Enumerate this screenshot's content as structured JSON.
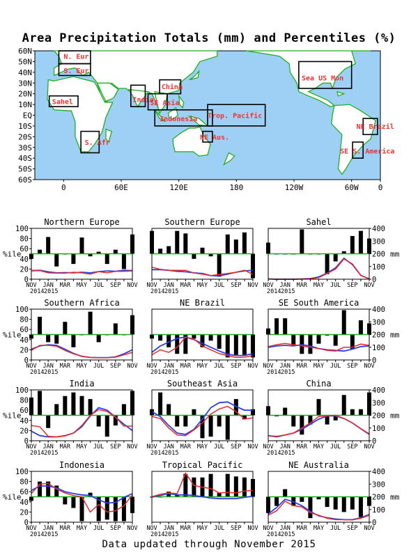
{
  "map": {
    "title": "Area Precipitation Totals (mm) and Percentiles (%)",
    "lat_labels": [
      "60N",
      "50N",
      "40N",
      "30N",
      "20N",
      "10N",
      "EQ",
      "10S",
      "20S",
      "30S",
      "40S",
      "50S",
      "60S"
    ],
    "lon_labels": [
      "0",
      "60E",
      "120E",
      "180",
      "120W",
      "60W",
      "0"
    ],
    "regions": [
      "N. Eur",
      "S. Eur",
      "Sahel",
      "S. Afr",
      "India",
      "SE Asia",
      "China",
      "Indonesia",
      "Trop. Pacific",
      "NE Aus.",
      "Sea US Mon",
      "NE Brazil",
      "SE S. America"
    ]
  },
  "footer": "Data updated through November 2015",
  "axis": {
    "ylabel_left": "%ile",
    "ylabel_right": "mm",
    "left_ticks": [
      "0",
      "20",
      "40",
      "60",
      "80",
      "100"
    ],
    "right_ticks": [
      "0",
      "100",
      "200",
      "300",
      "400"
    ],
    "month_labels": [
      "NOV",
      "JAN",
      "MAR",
      "MAY",
      "JUL",
      "SEP",
      "NOV"
    ],
    "year_labels": [
      "2014",
      "2015"
    ]
  },
  "chart_data": [
    {
      "type": "bar",
      "title": "Northern Europe",
      "x": [
        "N",
        "D",
        "J",
        "F",
        "M",
        "A",
        "M",
        "J",
        "J",
        "A",
        "S",
        "O",
        "N"
      ],
      "series": [
        {
          "name": "percentile",
          "values": [
            40,
            58,
            83,
            25,
            50,
            30,
            82,
            45,
            54,
            30,
            58,
            20,
            88
          ]
        },
        {
          "name": "observed_mm",
          "values": [
            65,
            68,
            50,
            48,
            47,
            55,
            50,
            40,
            60,
            50,
            62,
            62,
            65
          ]
        },
        {
          "name": "normal_mm",
          "values": [
            68,
            70,
            58,
            50,
            52,
            50,
            55,
            50,
            60,
            65,
            62,
            70,
            68
          ]
        }
      ],
      "ylim": [
        0,
        100
      ],
      "y2lim": [
        0,
        400
      ]
    },
    {
      "type": "bar",
      "title": "Southern Europe",
      "x": [
        "N",
        "D",
        "J",
        "F",
        "M",
        "A",
        "M",
        "J",
        "J",
        "A",
        "S",
        "O",
        "N"
      ],
      "series": [
        {
          "name": "percentile",
          "values": [
            95,
            60,
            65,
            95,
            90,
            40,
            62,
            45,
            5,
            88,
            78,
            92,
            2
          ]
        },
        {
          "name": "observed_mm",
          "values": [
            95,
            78,
            70,
            70,
            70,
            48,
            40,
            28,
            38,
            45,
            55,
            70,
            38
          ]
        },
        {
          "name": "normal_mm",
          "values": [
            75,
            75,
            70,
            62,
            58,
            50,
            45,
            28,
            25,
            40,
            55,
            65,
            70
          ]
        }
      ],
      "ylim": [
        0,
        100
      ],
      "y2lim": [
        0,
        400
      ]
    },
    {
      "type": "bar",
      "title": "Sahel",
      "x": [
        "N",
        "D",
        "J",
        "F",
        "M",
        "A",
        "M",
        "J",
        "J",
        "A",
        "S",
        "O",
        "N"
      ],
      "series": [
        {
          "name": "percentile",
          "values": [
            72,
            50,
            50,
            50,
            98,
            50,
            50,
            10,
            35,
            55,
            85,
            95,
            80
          ]
        },
        {
          "name": "observed_mm",
          "values": [
            2,
            0,
            0,
            0,
            1,
            3,
            12,
            45,
            80,
            160,
            120,
            30,
            2
          ]
        },
        {
          "name": "normal_mm",
          "values": [
            2,
            0,
            0,
            0,
            2,
            5,
            18,
            48,
            90,
            165,
            115,
            30,
            2
          ]
        }
      ],
      "ylim": [
        0,
        100
      ],
      "y2lim": [
        0,
        400
      ]
    },
    {
      "type": "bar",
      "title": "Southern Africa",
      "x": [
        "N",
        "D",
        "J",
        "F",
        "M",
        "A",
        "M",
        "J",
        "J",
        "A",
        "S",
        "O",
        "N"
      ],
      "series": [
        {
          "name": "percentile",
          "values": [
            42,
            85,
            35,
            32,
            75,
            25,
            50,
            95,
            35,
            50,
            72,
            50,
            88
          ]
        },
        {
          "name": "observed_mm",
          "values": [
            75,
            115,
            115,
            108,
            75,
            48,
            30,
            20,
            18,
            18,
            22,
            40,
            60
          ]
        },
        {
          "name": "normal_mm",
          "values": [
            85,
            110,
            120,
            115,
            85,
            52,
            28,
            20,
            18,
            18,
            24,
            48,
            80
          ]
        }
      ],
      "ylim": [
        0,
        100
      ],
      "y2lim": [
        0,
        400
      ]
    },
    {
      "type": "bar",
      "title": "NE Brazil",
      "x": [
        "N",
        "D",
        "J",
        "F",
        "M",
        "A",
        "M",
        "J",
        "J",
        "A",
        "S",
        "O",
        "N"
      ],
      "series": [
        {
          "name": "percentile",
          "values": [
            42,
            38,
            25,
            12,
            12,
            42,
            25,
            38,
            22,
            5,
            10,
            10,
            5
          ]
        },
        {
          "name": "observed_mm",
          "values": [
            40,
            80,
            60,
            100,
            180,
            165,
            110,
            80,
            50,
            35,
            20,
            22,
            35
          ]
        },
        {
          "name": "normal_mm",
          "values": [
            60,
            110,
            140,
            170,
            180,
            160,
            130,
            100,
            70,
            45,
            35,
            35,
            50
          ]
        }
      ],
      "ylim": [
        0,
        100
      ],
      "y2lim": [
        0,
        400
      ]
    },
    {
      "type": "bar",
      "title": "SE South America",
      "x": [
        "N",
        "D",
        "J",
        "F",
        "M",
        "A",
        "M",
        "J",
        "J",
        "A",
        "S",
        "O",
        "N"
      ],
      "series": [
        {
          "name": "percentile",
          "values": [
            62,
            82,
            82,
            28,
            12,
            12,
            32,
            48,
            28,
            98,
            22,
            78,
            72
          ]
        },
        {
          "name": "observed_mm",
          "values": [
            105,
            120,
            130,
            120,
            110,
            100,
            90,
            75,
            70,
            100,
            100,
            125,
            115
          ]
        },
        {
          "name": "normal_mm",
          "values": [
            100,
            110,
            115,
            110,
            120,
            110,
            90,
            80,
            75,
            70,
            85,
            105,
            110
          ]
        }
      ],
      "ylim": [
        0,
        100
      ],
      "y2lim": [
        0,
        400
      ]
    },
    {
      "type": "bar",
      "title": "India",
      "x": [
        "N",
        "D",
        "J",
        "F",
        "M",
        "A",
        "M",
        "J",
        "J",
        "A",
        "S",
        "O",
        "N"
      ],
      "series": [
        {
          "name": "percentile",
          "values": [
            85,
            98,
            25,
            72,
            88,
            95,
            88,
            82,
            28,
            8,
            30,
            72,
            98
          ]
        },
        {
          "name": "observed_mm",
          "values": [
            120,
            110,
            35,
            30,
            38,
            60,
            120,
            200,
            245,
            230,
            185,
            115,
            115
          ]
        },
        {
          "name": "normal_mm",
          "values": [
            75,
            40,
            30,
            30,
            40,
            60,
            110,
            195,
            260,
            240,
            185,
            130,
            80
          ]
        }
      ],
      "ylim": [
        0,
        100
      ],
      "y2lim": [
        0,
        400
      ]
    },
    {
      "type": "bar",
      "title": "Southeast Asia",
      "x": [
        "N",
        "D",
        "J",
        "F",
        "M",
        "A",
        "M",
        "J",
        "J",
        "A",
        "S",
        "O",
        "N"
      ],
      "series": [
        {
          "name": "percentile",
          "values": [
            62,
            95,
            72,
            28,
            28,
            62,
            5,
            8,
            28,
            2,
            82,
            42,
            62
          ]
        },
        {
          "name": "observed_mm",
          "values": [
            190,
            175,
            100,
            45,
            40,
            85,
            140,
            210,
            250,
            270,
            230,
            170,
            180
          ]
        },
        {
          "name": "normal_mm",
          "values": [
            230,
            190,
            120,
            60,
            50,
            90,
            170,
            260,
            300,
            305,
            270,
            240,
            240
          ]
        }
      ],
      "ylim": [
        0,
        100
      ],
      "y2lim": [
        0,
        400
      ]
    },
    {
      "type": "bar",
      "title": "China",
      "x": [
        "N",
        "D",
        "J",
        "F",
        "M",
        "A",
        "M",
        "J",
        "J",
        "A",
        "S",
        "O",
        "N"
      ],
      "series": [
        {
          "name": "percentile",
          "values": [
            68,
            48,
            65,
            28,
            12,
            32,
            82,
            32,
            40,
            90,
            62,
            62,
            95
          ]
        },
        {
          "name": "observed_mm",
          "values": [
            40,
            35,
            45,
            60,
            100,
            140,
            190,
            195,
            200,
            175,
            140,
            95,
            55
          ]
        },
        {
          "name": "normal_mm",
          "values": [
            40,
            30,
            45,
            60,
            90,
            130,
            170,
            195,
            195,
            175,
            140,
            95,
            50
          ]
        }
      ],
      "ylim": [
        0,
        100
      ],
      "y2lim": [
        0,
        400
      ]
    },
    {
      "type": "bar",
      "title": "Indonesia",
      "x": [
        "N",
        "D",
        "J",
        "F",
        "M",
        "A",
        "M",
        "J",
        "J",
        "A",
        "S",
        "O",
        "N"
      ],
      "series": [
        {
          "name": "percentile",
          "values": [
            42,
            80,
            80,
            72,
            35,
            28,
            2,
            58,
            2,
            5,
            2,
            2,
            18
          ]
        },
        {
          "name": "observed_mm",
          "values": [
            225,
            300,
            305,
            260,
            230,
            210,
            200,
            80,
            140,
            80,
            90,
            130,
            215
          ]
        },
        {
          "name": "normal_mm",
          "values": [
            250,
            285,
            285,
            270,
            240,
            225,
            215,
            210,
            175,
            150,
            155,
            195,
            225
          ]
        }
      ],
      "ylim": [
        0,
        100
      ],
      "y2lim": [
        0,
        400
      ]
    },
    {
      "type": "bar",
      "title": "Tropical Pacific",
      "x": [
        "N",
        "D",
        "J",
        "F",
        "M",
        "A",
        "M",
        "J",
        "J",
        "A",
        "S",
        "O",
        "N"
      ],
      "series": [
        {
          "name": "percentile",
          "values": [
            50,
            50,
            60,
            55,
            95,
            88,
            88,
            95,
            58,
            95,
            90,
            88,
            85
          ]
        },
        {
          "name": "observed_mm",
          "values": [
            200,
            220,
            230,
            225,
            385,
            290,
            275,
            265,
            230,
            235,
            230,
            245,
            250
          ]
        },
        {
          "name": "normal_mm",
          "values": [
            200,
            210,
            225,
            215,
            215,
            210,
            200,
            190,
            185,
            185,
            185,
            195,
            205
          ]
        }
      ],
      "ylim": [
        0,
        100
      ],
      "y2lim": [
        0,
        400
      ]
    },
    {
      "type": "bar",
      "title": "NE Australia",
      "x": [
        "N",
        "D",
        "J",
        "F",
        "M",
        "A",
        "M",
        "J",
        "J",
        "A",
        "S",
        "O",
        "N"
      ],
      "series": [
        {
          "name": "percentile",
          "values": [
            18,
            32,
            65,
            32,
            40,
            8,
            45,
            30,
            25,
            20,
            25,
            10,
            32
          ]
        },
        {
          "name": "observed_mm",
          "values": [
            55,
            90,
            165,
            130,
            120,
            75,
            55,
            30,
            20,
            20,
            18,
            30,
            55
          ]
        },
        {
          "name": "normal_mm",
          "values": [
            65,
            115,
            180,
            160,
            130,
            85,
            50,
            35,
            25,
            20,
            20,
            35,
            60
          ]
        }
      ],
      "ylim": [
        0,
        100
      ],
      "y2lim": [
        0,
        400
      ]
    }
  ]
}
